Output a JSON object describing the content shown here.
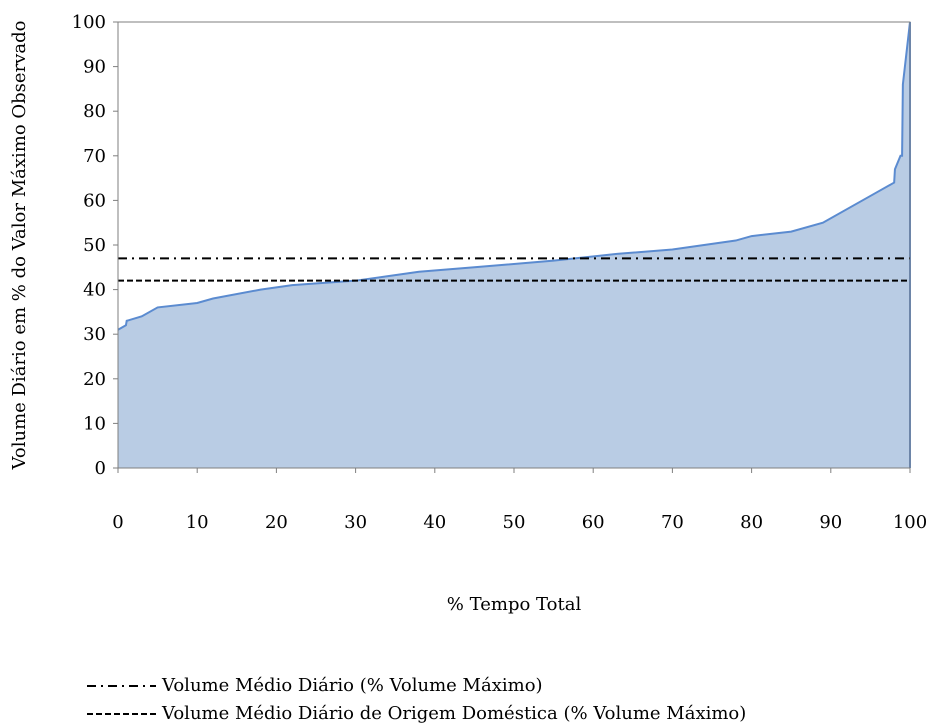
{
  "chart_data": {
    "type": "area",
    "xlabel": "% Tempo Total",
    "ylabel": "Volume Diário em % do Valor Máximo Observado",
    "xlim": [
      0,
      100
    ],
    "ylim": [
      0,
      100
    ],
    "x_ticks": [
      "0",
      "10",
      "20",
      "30",
      "40",
      "50",
      "60",
      "70",
      "80",
      "90",
      "100"
    ],
    "y_ticks": [
      "0",
      "10",
      "20",
      "30",
      "40",
      "50",
      "60",
      "70",
      "80",
      "90",
      "100"
    ],
    "grid": false,
    "legend_position": "bottom",
    "series": [
      {
        "fill_color": "#b9cce4",
        "line_color": "#5b8bd0",
        "x": [
          0,
          0.5,
          1,
          1.1,
          3,
          5,
          10,
          12,
          18,
          22,
          30,
          34,
          38,
          45,
          55,
          63,
          70,
          78,
          80,
          85,
          89,
          95,
          98,
          98.1,
          98.8,
          99,
          99.1,
          100
        ],
        "y": [
          31,
          31.5,
          32,
          33,
          34,
          36,
          37,
          38,
          40,
          41,
          42,
          43,
          44,
          45,
          46.5,
          48,
          49,
          51,
          52,
          53,
          55,
          61,
          64,
          67,
          70,
          70,
          86,
          100
        ]
      }
    ],
    "reference_lines": [
      {
        "label": "Volume Médio Diário (% Volume Máximo)",
        "y": 47,
        "style": "dash-dot",
        "color": "#000000"
      },
      {
        "label": "Volume Médio Diário de Origem Doméstica (% Volume Máximo)",
        "y": 42,
        "style": "dashed",
        "color": "#000000"
      }
    ]
  }
}
